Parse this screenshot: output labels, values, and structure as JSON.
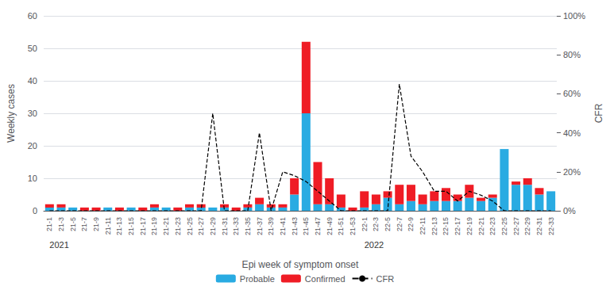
{
  "chart_data": {
    "type": "bar",
    "stacked": true,
    "grid": true,
    "legend": "bottom",
    "xlabel": "Epi week of symptom onset",
    "ylabel": "Weekly cases",
    "y2label": "CFR",
    "categories": [
      "21-1",
      "21-3",
      "21-5",
      "21-7",
      "21-9",
      "21-11",
      "21-13",
      "21-15",
      "21-17",
      "21-19",
      "21-21",
      "21-23",
      "21-25",
      "21-27",
      "21-29",
      "21-31",
      "21-33",
      "21-35",
      "21-37",
      "21-39",
      "21-41",
      "21-43",
      "21-45",
      "21-47",
      "21-49",
      "21-51",
      "21-53",
      "22-1",
      "22-3",
      "22-5",
      "22-7",
      "22-9",
      "22-11",
      "22-13",
      "22-15",
      "22-17",
      "22-19",
      "22-21",
      "22-23",
      "22-25",
      "22-27",
      "22-29",
      "22-31",
      "22-33"
    ],
    "series": [
      {
        "name": "Probable",
        "type": "bar",
        "color": "#29ABE2",
        "values": [
          1,
          1,
          1,
          0,
          0,
          1,
          0,
          1,
          0,
          1,
          1,
          0,
          1,
          1,
          1,
          1,
          0,
          1,
          2,
          1,
          1,
          5,
          30,
          2,
          2,
          1,
          0,
          1,
          2,
          4,
          2,
          3,
          2,
          3,
          3,
          3,
          4,
          3,
          4,
          19,
          8,
          8,
          5,
          6
        ]
      },
      {
        "name": "Confirmed",
        "type": "bar",
        "color": "#EF1C25",
        "values": [
          1,
          1,
          0,
          1,
          1,
          0,
          1,
          0,
          1,
          1,
          0,
          1,
          1,
          1,
          0,
          1,
          1,
          1,
          2,
          1,
          1,
          5,
          22,
          13,
          8,
          4,
          1,
          5,
          3,
          2,
          6,
          5,
          3,
          3,
          4,
          2,
          4,
          1,
          1,
          0,
          1,
          2,
          2,
          0
        ]
      },
      {
        "name": "CFR",
        "type": "line",
        "axis": "y2",
        "color": "#000000",
        "line_style": "dashed",
        "values": [
          0.0,
          0.0,
          0.0,
          0.0,
          0.0,
          0.0,
          0.0,
          0.0,
          0.0,
          0.0,
          0.0,
          0.0,
          0.0,
          0.0,
          0.5,
          0.0,
          0.0,
          0.0,
          0.4,
          0.0,
          0.2,
          0.18,
          0.15,
          0.1,
          0.05,
          0.0,
          0.0,
          0.0,
          0.0,
          0.0,
          0.65,
          0.28,
          0.2,
          0.1,
          0.1,
          0.05,
          0.1,
          0.08,
          0.05,
          0.0,
          0.0,
          0.0,
          0.0,
          0.0
        ]
      }
    ],
    "ylim": [
      0,
      60
    ],
    "yticks": [
      0,
      10,
      20,
      30,
      40,
      50,
      60
    ],
    "y2lim": [
      0,
      1.0
    ],
    "y2ticks": [
      {
        "value": 0,
        "label": "0%"
      },
      {
        "value": 0.2,
        "label": "20%"
      },
      {
        "value": 0.4,
        "label": "40%"
      },
      {
        "value": 0.6,
        "label": "60%"
      },
      {
        "value": 0.8,
        "label": "80%"
      },
      {
        "value": 1.0,
        "label": "100%"
      }
    ],
    "annotations": [
      {
        "text": "2021",
        "x": "21-1"
      },
      {
        "text": "2022",
        "x": "22-1"
      }
    ]
  }
}
